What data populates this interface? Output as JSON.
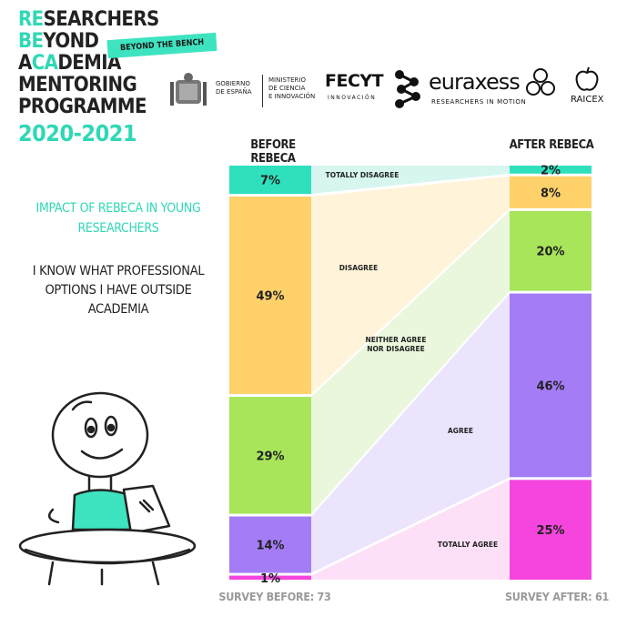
{
  "header": {
    "title_lines": [
      {
        "accent": "RE",
        "rest": "SEARCHERS"
      },
      {
        "accent": "BE",
        "rest": "YOND"
      },
      {
        "pre": "A",
        "accent": "CA",
        "rest": "DEMIA"
      },
      {
        "rest": "MENTORING"
      },
      {
        "rest": "PROGRAMME"
      }
    ],
    "years": "2020-2021",
    "badge": "BEYOND THE BENCH"
  },
  "logos": {
    "gob_line1": "GOBIERNO",
    "gob_line2": "DE ESPAÑA",
    "min_line1": "MINISTERIO",
    "min_line2": "DE CIENCIA",
    "min_line3": "E INNOVACIÓN",
    "fecyt": "FECYT",
    "fecyt_sub": "INNOVACIÓN",
    "euraxess": "euraxess",
    "euraxess_sub": "RESEARCHERS IN MOTION",
    "raicex": "RAICEX"
  },
  "left_text": {
    "impact": "IMPACT OF REBECA IN YOUNG RESEARCHERS",
    "statement": "I KNOW WHAT PROFESSIONAL OPTIONS I HAVE OUTSIDE ACADEMIA"
  },
  "chart_data": {
    "type": "bar",
    "columns": [
      "BEFORE REBECA",
      "AFTER REBECA"
    ],
    "categories": [
      "TOTALLY DISAGREE",
      "DISAGREE",
      "NEITHER AGREE NOR DISAGREE",
      "AGREE",
      "TOTALLY AGREE"
    ],
    "series": [
      {
        "name": "BEFORE REBECA",
        "values": [
          7,
          49,
          29,
          14,
          1
        ]
      },
      {
        "name": "AFTER REBECA",
        "values": [
          2,
          8,
          20,
          46,
          25
        ]
      }
    ],
    "unit": "%",
    "survey_before": "SURVEY BEFORE: 73",
    "survey_after": "SURVEY AFTER: 61",
    "colors": [
      "#2ee0bd",
      "#ffd16a",
      "#a8e55a",
      "#a47cf6",
      "#f545de"
    ],
    "flow_colors": [
      "#d6f6ef",
      "#fff3d9",
      "#eaf7dc",
      "#ebe4fc",
      "#fde0f8"
    ]
  }
}
